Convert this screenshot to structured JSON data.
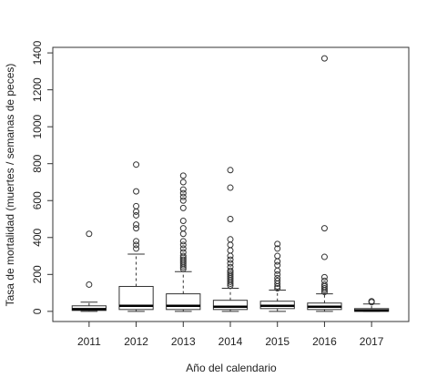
{
  "chart_data": {
    "type": "box",
    "x_label": "Año del calendario",
    "y_label": "Tasa de mortalidad (muertes / semanas de peces)",
    "categories": [
      "2011",
      "2012",
      "2013",
      "2014",
      "2015",
      "2016",
      "2017"
    ],
    "ylim": [
      -55,
      1430
    ],
    "yticks": [
      0,
      200,
      400,
      600,
      800,
      1000,
      1200,
      1400
    ],
    "color": "#333333",
    "boxes": [
      {
        "whisker_low": 0,
        "q1": 5,
        "median": 12,
        "q3": 30,
        "whisker_high": 50,
        "outliers": [
          145,
          420
        ]
      },
      {
        "whisker_low": 0,
        "q1": 10,
        "median": 30,
        "q3": 135,
        "whisker_high": 310,
        "outliers": [
          340,
          360,
          380,
          450,
          470,
          520,
          540,
          570,
          650,
          795
        ]
      },
      {
        "whisker_low": 0,
        "q1": 10,
        "median": 30,
        "q3": 95,
        "whisker_high": 215,
        "outliers": [
          230,
          240,
          250,
          260,
          270,
          280,
          290,
          300,
          320,
          340,
          360,
          380,
          420,
          450,
          490,
          560,
          600,
          620,
          640,
          660,
          700,
          735
        ]
      },
      {
        "whisker_low": 0,
        "q1": 10,
        "median": 25,
        "q3": 60,
        "whisker_high": 125,
        "outliers": [
          140,
          150,
          160,
          170,
          180,
          190,
          200,
          210,
          220,
          240,
          260,
          280,
          300,
          330,
          360,
          390,
          500,
          670,
          765
        ]
      },
      {
        "whisker_low": 0,
        "q1": 15,
        "median": 30,
        "q3": 55,
        "whisker_high": 115,
        "outliers": [
          125,
          135,
          150,
          165,
          180,
          200,
          220,
          250,
          270,
          300,
          340,
          365
        ]
      },
      {
        "whisker_low": 0,
        "q1": 10,
        "median": 25,
        "q3": 45,
        "whisker_high": 95,
        "outliers": [
          105,
          115,
          125,
          135,
          145,
          165,
          185,
          295,
          450,
          1370
        ]
      },
      {
        "whisker_low": 0,
        "q1": 0,
        "median": 5,
        "q3": 15,
        "whisker_high": 40,
        "outliers": [
          50,
          55
        ]
      }
    ]
  }
}
